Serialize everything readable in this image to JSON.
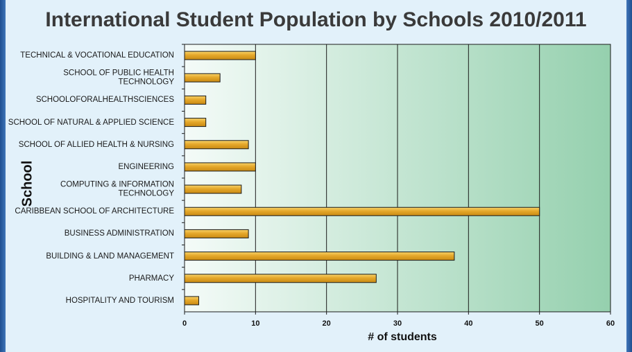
{
  "chart_data": {
    "type": "bar",
    "orientation": "horizontal",
    "title": "International Student Population by Schools 2010/2011",
    "xlabel": "# of students",
    "ylabel": "School",
    "xlim": [
      0,
      60
    ],
    "xticks": [
      "0",
      "10",
      "20",
      "30",
      "40",
      "50",
      "60"
    ],
    "grid": true,
    "categories": [
      "TECHNICAL & VOCATIONAL EDUCATION",
      "SCHOOL OF PUBLIC HEALTH TECHNOLOGY",
      "SCHOOLOFORALHEALTHSCIENCES",
      "SCHOOL OF NATURAL & APPLIED SCIENCE",
      "SCHOOL OF ALLIED HEALTH & NURSING",
      "ENGINEERING",
      "COMPUTING & INFORMATION TECHNOLOGY",
      "CARIBBEAN SCHOOL OF ARCHITECTURE",
      "BUSINESS ADMINISTRATION",
      "BUILDING & LAND MANAGEMENT",
      "PHARMACY",
      "HOSPITALITY AND TOURISM"
    ],
    "values": [
      10,
      5,
      3,
      3,
      9,
      10,
      8,
      50,
      9,
      38,
      27,
      2
    ],
    "colors": {
      "bar": "#e5a82a",
      "bar_highlight": "#f7d36a",
      "bar_border": "#1a1a1a",
      "background_start": "#f4fbf8",
      "background_end": "#95d0ae",
      "gridline": "#1a1a1a"
    }
  }
}
